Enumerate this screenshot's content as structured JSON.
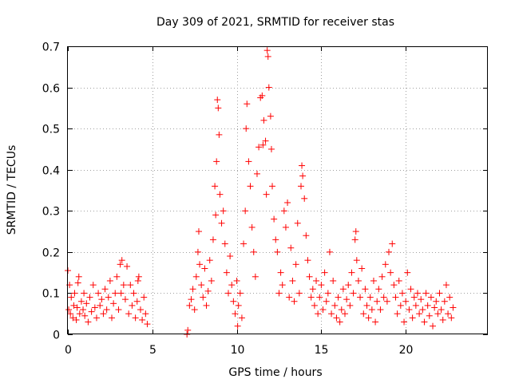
{
  "chart_data": {
    "type": "scatter",
    "title": "Day 309 of 2021, SRMTID for receiver stas",
    "xlabel": "GPS time / hours",
    "ylabel": "SRMTID / TECUs",
    "xlim": [
      0,
      24.86
    ],
    "ylim": [
      0,
      0.7
    ],
    "xticks": [
      0,
      5,
      10,
      15,
      20
    ],
    "xtick_labels": [
      "0",
      "5",
      "10",
      "15",
      "20"
    ],
    "yticks": [
      0,
      0.1,
      0.2,
      0.3,
      0.4,
      0.5,
      0.6,
      0.7
    ],
    "ytick_labels": [
      "0",
      "0.1",
      "0.2",
      "0.3",
      "0.4",
      "0.5",
      "0.6",
      "0.7"
    ],
    "grid": true,
    "marker": "+",
    "color": "#ff0000",
    "series": [
      {
        "name": "SRMTID",
        "points": [
          [
            0.0,
            0.155
          ],
          [
            0.05,
            0.06
          ],
          [
            0.1,
            0.12
          ],
          [
            0.15,
            0.05
          ],
          [
            0.2,
            0.09
          ],
          [
            0.3,
            0.04
          ],
          [
            0.35,
            0.07
          ],
          [
            0.4,
            0.1
          ],
          [
            0.5,
            0.035
          ],
          [
            0.55,
            0.065
          ],
          [
            0.6,
            0.125
          ],
          [
            0.65,
            0.14
          ],
          [
            0.7,
            0.05
          ],
          [
            0.8,
            0.08
          ],
          [
            0.9,
            0.06
          ],
          [
            0.95,
            0.1
          ],
          [
            1.0,
            0.045
          ],
          [
            1.1,
            0.075
          ],
          [
            1.2,
            0.03
          ],
          [
            1.3,
            0.09
          ],
          [
            1.4,
            0.055
          ],
          [
            1.5,
            0.12
          ],
          [
            1.6,
            0.065
          ],
          [
            1.7,
            0.04
          ],
          [
            1.8,
            0.1
          ],
          [
            1.9,
            0.07
          ],
          [
            2.0,
            0.085
          ],
          [
            2.1,
            0.05
          ],
          [
            2.2,
            0.11
          ],
          [
            2.3,
            0.06
          ],
          [
            2.4,
            0.09
          ],
          [
            2.5,
            0.13
          ],
          [
            2.6,
            0.04
          ],
          [
            2.7,
            0.075
          ],
          [
            2.8,
            0.1
          ],
          [
            2.9,
            0.14
          ],
          [
            3.0,
            0.06
          ],
          [
            3.1,
            0.17
          ],
          [
            3.15,
            0.1
          ],
          [
            3.2,
            0.18
          ],
          [
            3.3,
            0.12
          ],
          [
            3.4,
            0.085
          ],
          [
            3.5,
            0.165
          ],
          [
            3.6,
            0.05
          ],
          [
            3.7,
            0.12
          ],
          [
            3.8,
            0.07
          ],
          [
            3.9,
            0.1
          ],
          [
            4.0,
            0.04
          ],
          [
            4.1,
            0.08
          ],
          [
            4.15,
            0.13
          ],
          [
            4.2,
            0.14
          ],
          [
            4.3,
            0.06
          ],
          [
            4.4,
            0.035
          ],
          [
            4.5,
            0.09
          ],
          [
            4.6,
            0.05
          ],
          [
            4.7,
            0.025
          ],
          [
            7.05,
            0.0
          ],
          [
            7.1,
            0.01
          ],
          [
            7.2,
            0.07
          ],
          [
            7.3,
            0.085
          ],
          [
            7.4,
            0.11
          ],
          [
            7.5,
            0.06
          ],
          [
            7.6,
            0.14
          ],
          [
            7.7,
            0.2
          ],
          [
            7.75,
            0.25
          ],
          [
            7.8,
            0.17
          ],
          [
            7.9,
            0.12
          ],
          [
            8.0,
            0.09
          ],
          [
            8.1,
            0.16
          ],
          [
            8.2,
            0.07
          ],
          [
            8.3,
            0.105
          ],
          [
            8.4,
            0.18
          ],
          [
            8.5,
            0.13
          ],
          [
            8.6,
            0.23
          ],
          [
            8.7,
            0.36
          ],
          [
            8.75,
            0.29
          ],
          [
            8.8,
            0.42
          ],
          [
            8.85,
            0.57
          ],
          [
            8.9,
            0.55
          ],
          [
            8.95,
            0.485
          ],
          [
            9.0,
            0.34
          ],
          [
            9.1,
            0.27
          ],
          [
            9.2,
            0.3
          ],
          [
            9.3,
            0.22
          ],
          [
            9.4,
            0.15
          ],
          [
            9.5,
            0.1
          ],
          [
            9.6,
            0.19
          ],
          [
            9.7,
            0.12
          ],
          [
            9.8,
            0.08
          ],
          [
            9.9,
            0.05
          ],
          [
            10.0,
            0.13
          ],
          [
            10.05,
            0.02
          ],
          [
            10.1,
            0.07
          ],
          [
            10.2,
            0.1
          ],
          [
            10.3,
            0.04
          ],
          [
            10.4,
            0.22
          ],
          [
            10.5,
            0.3
          ],
          [
            10.55,
            0.5
          ],
          [
            10.6,
            0.56
          ],
          [
            10.7,
            0.42
          ],
          [
            10.8,
            0.36
          ],
          [
            10.9,
            0.26
          ],
          [
            11.0,
            0.2
          ],
          [
            11.1,
            0.14
          ],
          [
            11.2,
            0.39
          ],
          [
            11.3,
            0.455
          ],
          [
            11.4,
            0.575
          ],
          [
            11.5,
            0.58
          ],
          [
            11.55,
            0.46
          ],
          [
            11.6,
            0.52
          ],
          [
            11.7,
            0.47
          ],
          [
            11.75,
            0.34
          ],
          [
            11.8,
            0.69
          ],
          [
            11.85,
            0.675
          ],
          [
            11.9,
            0.6
          ],
          [
            12.0,
            0.53
          ],
          [
            12.05,
            0.45
          ],
          [
            12.1,
            0.36
          ],
          [
            12.2,
            0.28
          ],
          [
            12.3,
            0.23
          ],
          [
            12.4,
            0.2
          ],
          [
            12.5,
            0.1
          ],
          [
            12.6,
            0.15
          ],
          [
            12.7,
            0.12
          ],
          [
            12.8,
            0.3
          ],
          [
            12.9,
            0.26
          ],
          [
            13.0,
            0.32
          ],
          [
            13.1,
            0.09
          ],
          [
            13.2,
            0.21
          ],
          [
            13.3,
            0.13
          ],
          [
            13.4,
            0.08
          ],
          [
            13.5,
            0.17
          ],
          [
            13.6,
            0.27
          ],
          [
            13.7,
            0.1
          ],
          [
            13.8,
            0.36
          ],
          [
            13.85,
            0.41
          ],
          [
            13.9,
            0.385
          ],
          [
            14.0,
            0.33
          ],
          [
            14.1,
            0.24
          ],
          [
            14.2,
            0.18
          ],
          [
            14.3,
            0.14
          ],
          [
            14.4,
            0.09
          ],
          [
            14.5,
            0.11
          ],
          [
            14.6,
            0.07
          ],
          [
            14.7,
            0.13
          ],
          [
            14.8,
            0.05
          ],
          [
            14.9,
            0.09
          ],
          [
            15.0,
            0.12
          ],
          [
            15.1,
            0.06
          ],
          [
            15.2,
            0.15
          ],
          [
            15.3,
            0.08
          ],
          [
            15.4,
            0.1
          ],
          [
            15.5,
            0.2
          ],
          [
            15.6,
            0.05
          ],
          [
            15.7,
            0.13
          ],
          [
            15.8,
            0.07
          ],
          [
            15.9,
            0.04
          ],
          [
            16.0,
            0.09
          ],
          [
            16.1,
            0.03
          ],
          [
            16.2,
            0.06
          ],
          [
            16.3,
            0.11
          ],
          [
            16.4,
            0.05
          ],
          [
            16.5,
            0.085
          ],
          [
            16.6,
            0.12
          ],
          [
            16.7,
            0.07
          ],
          [
            16.8,
            0.15
          ],
          [
            16.9,
            0.1
          ],
          [
            17.0,
            0.23
          ],
          [
            17.05,
            0.25
          ],
          [
            17.1,
            0.18
          ],
          [
            17.2,
            0.13
          ],
          [
            17.3,
            0.09
          ],
          [
            17.4,
            0.16
          ],
          [
            17.5,
            0.05
          ],
          [
            17.6,
            0.11
          ],
          [
            17.7,
            0.07
          ],
          [
            17.8,
            0.04
          ],
          [
            17.9,
            0.09
          ],
          [
            18.0,
            0.06
          ],
          [
            18.1,
            0.13
          ],
          [
            18.2,
            0.03
          ],
          [
            18.3,
            0.08
          ],
          [
            18.4,
            0.11
          ],
          [
            18.5,
            0.06
          ],
          [
            18.6,
            0.14
          ],
          [
            18.7,
            0.09
          ],
          [
            18.8,
            0.17
          ],
          [
            18.9,
            0.08
          ],
          [
            19.0,
            0.2
          ],
          [
            19.1,
            0.15
          ],
          [
            19.2,
            0.22
          ],
          [
            19.3,
            0.12
          ],
          [
            19.4,
            0.09
          ],
          [
            19.5,
            0.05
          ],
          [
            19.6,
            0.13
          ],
          [
            19.7,
            0.07
          ],
          [
            19.8,
            0.1
          ],
          [
            19.9,
            0.03
          ],
          [
            20.0,
            0.08
          ],
          [
            20.1,
            0.15
          ],
          [
            20.2,
            0.06
          ],
          [
            20.3,
            0.11
          ],
          [
            20.4,
            0.04
          ],
          [
            20.5,
            0.09
          ],
          [
            20.6,
            0.07
          ],
          [
            20.7,
            0.1
          ],
          [
            20.8,
            0.05
          ],
          [
            20.9,
            0.085
          ],
          [
            21.0,
            0.06
          ],
          [
            21.1,
            0.03
          ],
          [
            21.2,
            0.1
          ],
          [
            21.3,
            0.07
          ],
          [
            21.4,
            0.045
          ],
          [
            21.5,
            0.09
          ],
          [
            21.6,
            0.02
          ],
          [
            21.7,
            0.065
          ],
          [
            21.8,
            0.08
          ],
          [
            21.9,
            0.05
          ],
          [
            22.0,
            0.1
          ],
          [
            22.1,
            0.06
          ],
          [
            22.2,
            0.035
          ],
          [
            22.3,
            0.08
          ],
          [
            22.4,
            0.12
          ],
          [
            22.5,
            0.05
          ],
          [
            22.6,
            0.09
          ],
          [
            22.7,
            0.04
          ],
          [
            22.8,
            0.065
          ]
        ]
      }
    ]
  }
}
